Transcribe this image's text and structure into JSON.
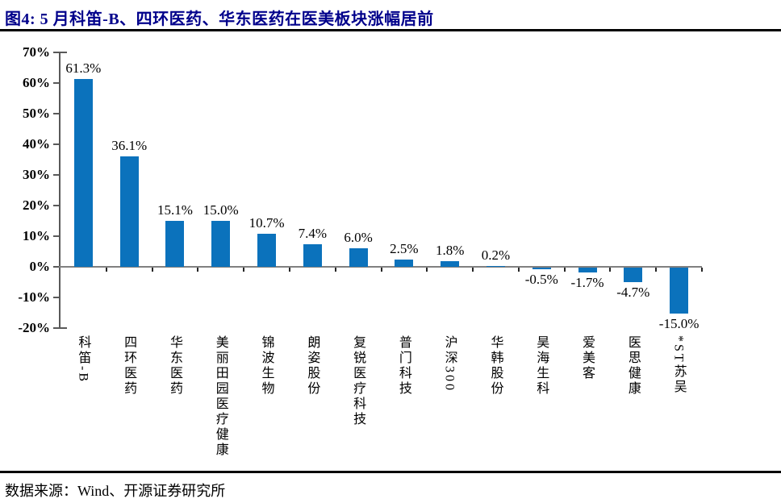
{
  "figure": {
    "title": "图4:  5 月科笛-B、四环医药、华东医药在医美板块涨幅居前",
    "source": "数据来源：Wind、开源证券研究所"
  },
  "chart_data": {
    "type": "bar",
    "title": "5 月科笛-B、四环医药、华东医药在医美板块涨幅居前",
    "categories": [
      "科笛-B",
      "四环医药",
      "华东医药",
      "美丽田园医疗健康",
      "锦波生物",
      "朗姿股份",
      "复锐医疗科技",
      "普门科技",
      "沪深300",
      "华韩股份",
      "昊海生科",
      "爱美客",
      "医思健康",
      "*ST苏吴"
    ],
    "values": [
      61.3,
      36.1,
      15.1,
      15.0,
      10.7,
      7.4,
      6.0,
      2.5,
      1.8,
      0.2,
      -0.5,
      -1.7,
      -4.7,
      -15.0
    ],
    "value_labels": [
      "61.3%",
      "36.1%",
      "15.1%",
      "15.0%",
      "10.7%",
      "7.4%",
      "6.0%",
      "2.5%",
      "1.8%",
      "0.2%",
      "-0.5%",
      "-1.7%",
      "-4.7%",
      "-15.0%"
    ],
    "xlabel": "",
    "ylabel": "",
    "ylim": [
      -20,
      70
    ],
    "yticks": [
      70,
      60,
      50,
      40,
      30,
      20,
      10,
      0,
      -10,
      -20
    ],
    "ytick_labels": [
      "70%",
      "60%",
      "50%",
      "40%",
      "30%",
      "20%",
      "10%",
      "0%",
      "-10%",
      "-20%"
    ],
    "grid": false,
    "legend": null,
    "bar_color": "#0b72bc",
    "axis_color": "#595959",
    "zero_line_color": "#808080",
    "title_color": "#00008b"
  }
}
